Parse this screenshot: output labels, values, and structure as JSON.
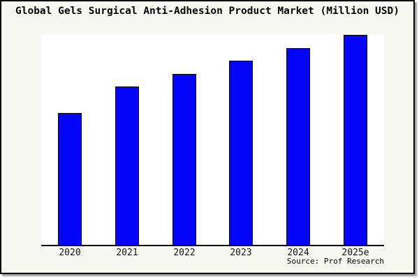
{
  "source_caption": "Source: Prof Research",
  "colors": {
    "canvas_background": "#F8F8F3",
    "plot_background": "#FFFFFF",
    "bar_fill": "#0505FA",
    "bar_edge": "#000000",
    "axis_line": "#000000",
    "text": "#000000",
    "frame_border": "#000000",
    "frame_shadow": "#A0A09A"
  },
  "chart_data": {
    "type": "bar",
    "title": "Global Gels Surgical Anti-Adhesion Product Market (Million USD)",
    "categories": [
      "2020",
      "2021",
      "2022",
      "2023",
      "2024",
      "2025e"
    ],
    "values": [
      62.8,
      75.4,
      81.4,
      87.7,
      93.7,
      100
    ],
    "value_note": "y-axis has no tick labels or gridlines; values estimated from bar heights as relative index with 2025e = 100",
    "xlabel": "",
    "ylabel": "",
    "ylim": [
      0,
      100
    ],
    "grid": false,
    "legend": false,
    "y_axis_visible": false,
    "source": "Source: Prof Research"
  }
}
